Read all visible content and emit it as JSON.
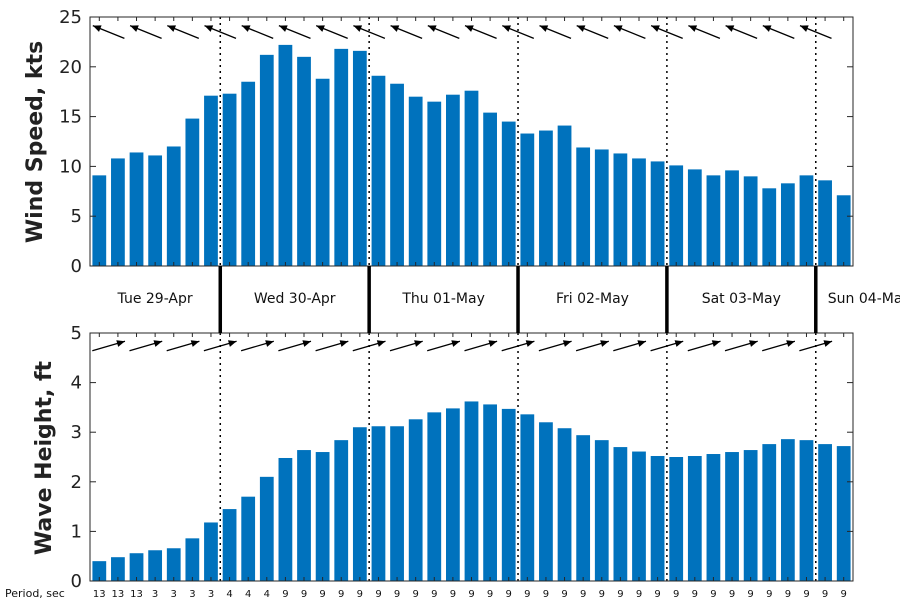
{
  "colors": {
    "bar": "#0072bd",
    "axis": "#262626",
    "arrow": "#000000"
  },
  "days": [
    "Tue 29-Apr",
    "Wed 30-Apr",
    "Thu 01-May",
    "Fri 02-May",
    "Sat 03-May",
    "Sun 04-Ma"
  ],
  "period_label": "Period, sec",
  "chart_data": [
    {
      "type": "bar",
      "ylabel": "Wind Speed, kts",
      "ylim": [
        0,
        25
      ],
      "yticks": [
        0,
        5,
        10,
        15,
        20,
        25
      ],
      "grid": false,
      "values": [
        9.1,
        10.8,
        11.4,
        11.1,
        12.0,
        14.8,
        17.1,
        17.3,
        18.5,
        21.2,
        22.2,
        21.0,
        18.8,
        21.8,
        21.6,
        19.1,
        18.3,
        17.0,
        16.5,
        17.2,
        17.6,
        15.4,
        14.5,
        13.3,
        13.6,
        14.1,
        11.9,
        11.7,
        11.3,
        10.8,
        10.5,
        10.1,
        9.7,
        9.1,
        9.6,
        9.0,
        7.8,
        8.3,
        9.1,
        8.6,
        7.1
      ],
      "direction_arrows": "wind from ~WNW (arrows point up-left)"
    },
    {
      "type": "bar",
      "ylabel": "Wave Height, ft",
      "ylim": [
        0,
        5
      ],
      "yticks": [
        0,
        1,
        2,
        3,
        4,
        5
      ],
      "grid": false,
      "values": [
        0.4,
        0.48,
        0.56,
        0.62,
        0.66,
        0.86,
        1.18,
        1.45,
        1.7,
        2.1,
        2.48,
        2.64,
        2.6,
        2.84,
        3.1,
        3.12,
        3.12,
        3.26,
        3.4,
        3.48,
        3.62,
        3.56,
        3.47,
        3.36,
        3.2,
        3.08,
        2.94,
        2.84,
        2.7,
        2.61,
        2.52,
        2.5,
        2.52,
        2.56,
        2.6,
        2.64,
        2.76,
        2.86,
        2.84,
        2.76,
        2.72
      ],
      "periods": [
        13,
        13,
        13,
        3,
        3,
        3,
        3,
        4,
        4,
        4,
        9,
        9,
        9,
        9,
        9,
        9,
        9,
        9,
        9,
        9,
        9,
        9,
        9,
        9,
        9,
        9,
        9,
        9,
        9,
        9,
        9,
        9,
        9,
        9,
        9,
        9,
        9,
        9,
        9,
        9,
        9
      ],
      "direction_arrows": "waves heading ~ENE (arrows point up-right)"
    }
  ]
}
